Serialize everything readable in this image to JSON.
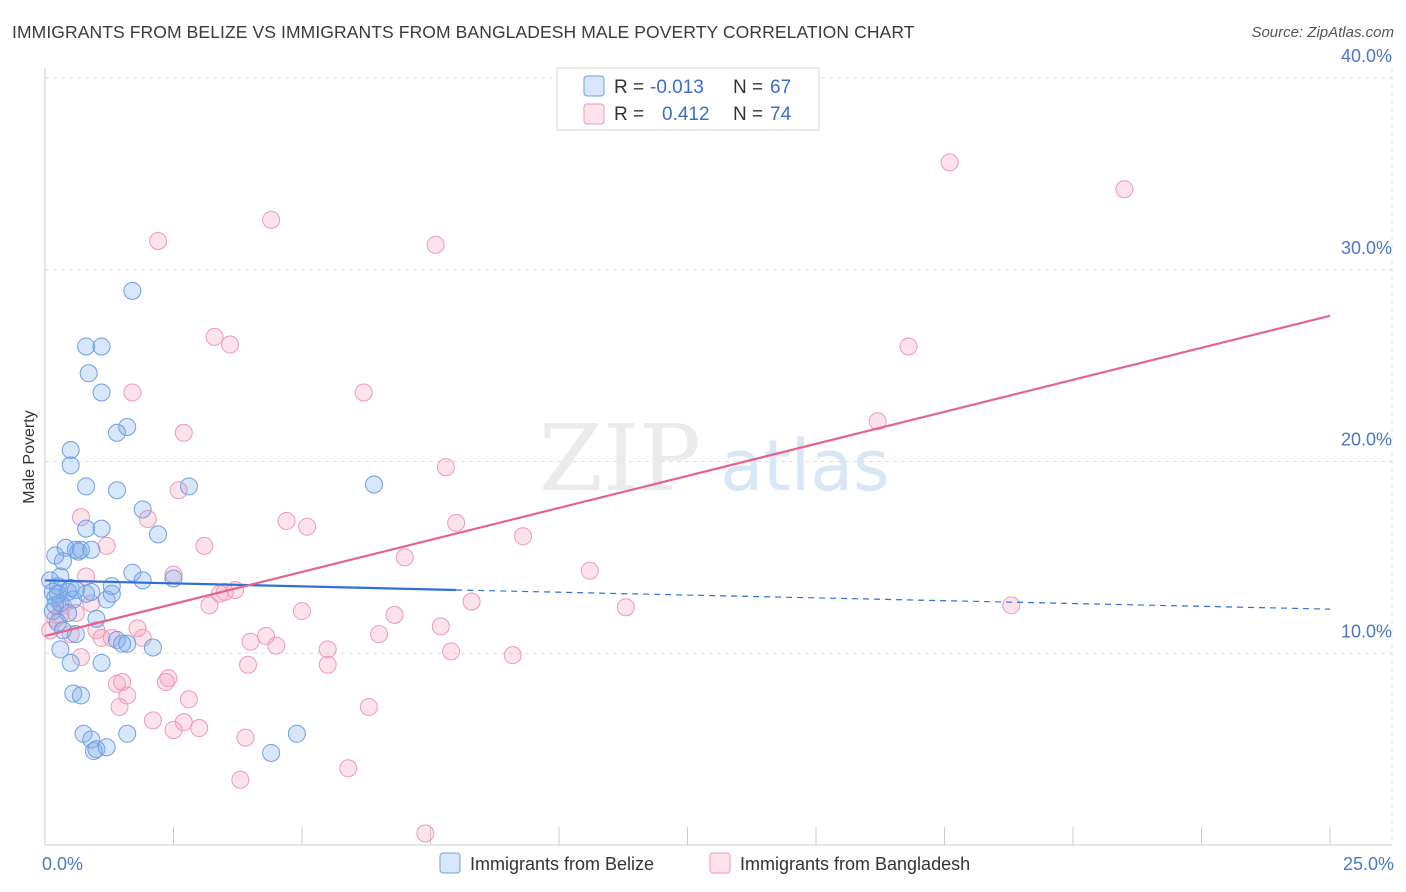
{
  "title": "IMMIGRANTS FROM BELIZE VS IMMIGRANTS FROM BANGLADESH MALE POVERTY CORRELATION CHART",
  "source": "Source: ZipAtlas.com",
  "watermark": {
    "zip": "ZIP",
    "atlas": "atlas"
  },
  "colors": {
    "belize_fill": "rgba(126,172,236,0.30)",
    "belize_stroke": "#6f9fe3",
    "belize_line": "#2f6fd6",
    "bangladesh_fill": "rgba(244,160,190,0.30)",
    "bangladesh_stroke": "#ee9ab7",
    "bangladesh_line": "#e3648f",
    "tick_color": "#4a78c8",
    "grid": "#dddddd"
  },
  "chart_data": {
    "type": "scatter",
    "title": "IMMIGRANTS FROM BELIZE VS IMMIGRANTS FROM BANGLADESH MALE POVERTY CORRELATION CHART",
    "xlabel": "",
    "ylabel": "Male Poverty",
    "xlim": [
      0,
      25
    ],
    "ylim": [
      0,
      40
    ],
    "x_tick_labels": [
      "0.0%",
      "25.0%"
    ],
    "y_ticks": [
      10,
      20,
      30,
      40
    ],
    "y_tick_labels": [
      "10.0%",
      "20.0%",
      "30.0%",
      "40.0%"
    ],
    "legend": [
      {
        "name": "Immigrants from Belize",
        "r_label": "R =",
        "r": "-0.013",
        "n_label": "N =",
        "n": "67"
      },
      {
        "name": "Immigrants from Bangladesh",
        "r_label": "R =",
        "r": "0.412",
        "n_label": "N =",
        "n": "74"
      }
    ],
    "series": [
      {
        "name": "Immigrants from Belize",
        "trend": {
          "x0": 0,
          "y0": 13.8,
          "x1": 8,
          "y1": 13.3,
          "dash_to_x": 25,
          "dash_to_y": 12.3
        },
        "points": [
          [
            0.1,
            13.8
          ],
          [
            0.15,
            13.2
          ],
          [
            0.2,
            12.9
          ],
          [
            0.25,
            13.5
          ],
          [
            0.3,
            14.0
          ],
          [
            0.15,
            12.2
          ],
          [
            0.25,
            11.6
          ],
          [
            0.2,
            15.1
          ],
          [
            0.35,
            14.8
          ],
          [
            0.4,
            15.5
          ],
          [
            0.3,
            12.6
          ],
          [
            0.45,
            13.2
          ],
          [
            0.5,
            13.4
          ],
          [
            0.55,
            12.8
          ],
          [
            0.6,
            15.4
          ],
          [
            0.65,
            15.3
          ],
          [
            0.7,
            15.4
          ],
          [
            0.6,
            11.0
          ],
          [
            0.3,
            10.2
          ],
          [
            0.5,
            9.5
          ],
          [
            0.55,
            7.9
          ],
          [
            0.7,
            7.8
          ],
          [
            0.75,
            5.8
          ],
          [
            0.9,
            5.5
          ],
          [
            0.95,
            4.9
          ],
          [
            1.0,
            5.0
          ],
          [
            1.2,
            5.1
          ],
          [
            0.9,
            15.4
          ],
          [
            0.8,
            13.1
          ],
          [
            0.9,
            13.2
          ],
          [
            1.0,
            11.8
          ],
          [
            1.1,
            9.5
          ],
          [
            1.2,
            12.8
          ],
          [
            1.3,
            13.1
          ],
          [
            1.4,
            10.7
          ],
          [
            1.5,
            10.5
          ],
          [
            1.6,
            10.5
          ],
          [
            1.7,
            14.2
          ],
          [
            1.9,
            13.8
          ],
          [
            2.1,
            10.3
          ],
          [
            0.8,
            16.5
          ],
          [
            1.1,
            16.5
          ],
          [
            0.8,
            18.7
          ],
          [
            1.4,
            18.5
          ],
          [
            0.5,
            19.8
          ],
          [
            0.5,
            20.6
          ],
          [
            1.4,
            21.5
          ],
          [
            1.6,
            21.8
          ],
          [
            1.1,
            23.6
          ],
          [
            0.85,
            24.6
          ],
          [
            0.8,
            26.0
          ],
          [
            1.1,
            26.0
          ],
          [
            1.7,
            28.9
          ],
          [
            1.9,
            17.5
          ],
          [
            2.2,
            16.2
          ],
          [
            2.8,
            18.7
          ],
          [
            1.3,
            13.5
          ],
          [
            2.5,
            13.9
          ],
          [
            4.4,
            4.8
          ],
          [
            4.9,
            5.8
          ],
          [
            6.4,
            18.8
          ],
          [
            1.6,
            5.8
          ],
          [
            0.25,
            13.1
          ],
          [
            0.35,
            11.2
          ],
          [
            0.2,
            12.5
          ],
          [
            0.45,
            12.1
          ],
          [
            0.6,
            13.3
          ]
        ]
      },
      {
        "name": "Immigrants from Bangladesh",
        "trend": {
          "x0": 0,
          "y0": 10.9,
          "x1": 25,
          "y1": 27.6
        },
        "points": [
          [
            0.1,
            11.2
          ],
          [
            0.2,
            11.8
          ],
          [
            0.3,
            12.0
          ],
          [
            0.35,
            12.5
          ],
          [
            0.5,
            11.0
          ],
          [
            0.6,
            12.1
          ],
          [
            0.7,
            9.8
          ],
          [
            0.7,
            17.1
          ],
          [
            0.8,
            14.0
          ],
          [
            0.9,
            12.6
          ],
          [
            1.0,
            11.2
          ],
          [
            1.1,
            10.8
          ],
          [
            1.2,
            15.6
          ],
          [
            1.3,
            10.8
          ],
          [
            1.4,
            8.4
          ],
          [
            1.5,
            8.5
          ],
          [
            1.6,
            7.8
          ],
          [
            1.8,
            11.3
          ],
          [
            1.9,
            10.8
          ],
          [
            1.7,
            23.6
          ],
          [
            2.0,
            17.0
          ],
          [
            2.1,
            6.5
          ],
          [
            2.2,
            31.5
          ],
          [
            2.4,
            8.7
          ],
          [
            2.5,
            6.0
          ],
          [
            2.5,
            14.1
          ],
          [
            2.6,
            18.5
          ],
          [
            2.7,
            6.4
          ],
          [
            2.7,
            21.5
          ],
          [
            2.8,
            7.6
          ],
          [
            3.0,
            6.1
          ],
          [
            3.1,
            15.6
          ],
          [
            3.2,
            12.5
          ],
          [
            3.3,
            26.5
          ],
          [
            3.4,
            13.1
          ],
          [
            3.5,
            13.2
          ],
          [
            3.6,
            26.1
          ],
          [
            3.7,
            13.3
          ],
          [
            3.9,
            5.6
          ],
          [
            3.95,
            9.4
          ],
          [
            4.0,
            10.6
          ],
          [
            4.3,
            10.9
          ],
          [
            4.4,
            32.6
          ],
          [
            4.5,
            10.4
          ],
          [
            4.7,
            16.9
          ],
          [
            5.0,
            12.2
          ],
          [
            5.1,
            16.6
          ],
          [
            5.5,
            10.2
          ],
          [
            5.5,
            9.4
          ],
          [
            5.9,
            4.0
          ],
          [
            6.2,
            23.6
          ],
          [
            6.3,
            7.2
          ],
          [
            6.5,
            11.0
          ],
          [
            6.8,
            12.0
          ],
          [
            7.0,
            15.0
          ],
          [
            7.4,
            0.6
          ],
          [
            7.6,
            31.3
          ],
          [
            7.7,
            11.4
          ],
          [
            7.8,
            19.7
          ],
          [
            7.9,
            10.1
          ],
          [
            8.0,
            16.8
          ],
          [
            8.3,
            12.7
          ],
          [
            9.1,
            9.9
          ],
          [
            9.3,
            16.1
          ],
          [
            10.6,
            14.3
          ],
          [
            11.3,
            12.4
          ],
          [
            16.2,
            22.1
          ],
          [
            16.8,
            26.0
          ],
          [
            17.6,
            35.6
          ],
          [
            18.8,
            12.5
          ],
          [
            21.0,
            34.2
          ],
          [
            1.45,
            7.2
          ],
          [
            3.8,
            3.4
          ],
          [
            2.35,
            8.5
          ]
        ]
      }
    ]
  }
}
